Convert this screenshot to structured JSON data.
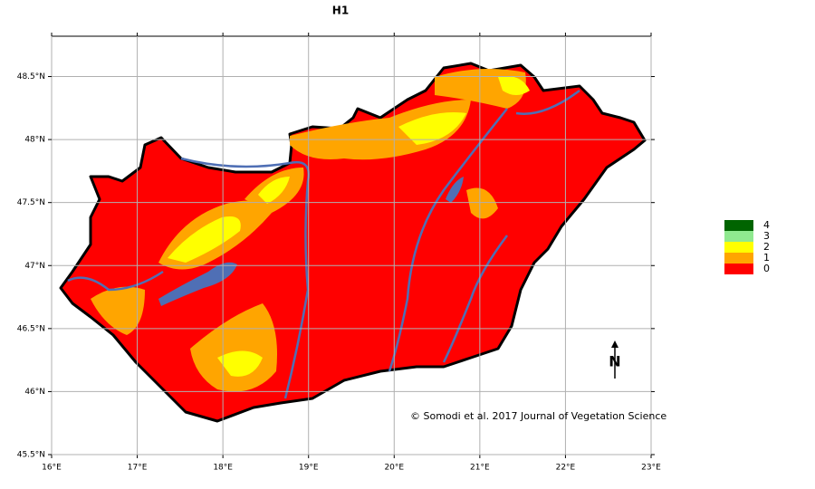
{
  "title": "H1",
  "map": {
    "xlim": [
      16,
      23
    ],
    "ylim": [
      45.5,
      48.82
    ],
    "xticks": [
      {
        "value": 16,
        "label": "16°E"
      },
      {
        "value": 17,
        "label": "17°E"
      },
      {
        "value": 18,
        "label": "18°E"
      },
      {
        "value": 19,
        "label": "19°E"
      },
      {
        "value": 20,
        "label": "20°E"
      },
      {
        "value": 21,
        "label": "21°E"
      },
      {
        "value": 22,
        "label": "22°E"
      },
      {
        "value": 23,
        "label": "23°E"
      }
    ],
    "yticks": [
      {
        "value": 45.5,
        "label": "45.5°N"
      },
      {
        "value": 46,
        "label": "46°N"
      },
      {
        "value": 46.5,
        "label": "46.5°N"
      },
      {
        "value": 47,
        "label": "47°N"
      },
      {
        "value": 47.5,
        "label": "47.5°N"
      },
      {
        "value": 48,
        "label": "48°N"
      },
      {
        "value": 48.5,
        "label": "48.5°N"
      }
    ],
    "grid": true,
    "credit": "© Somodi et al. 2017 Journal of Vegetation Science",
    "north": "N"
  },
  "legend": {
    "classes": [
      {
        "value": 4,
        "color": "#006400"
      },
      {
        "value": 3,
        "color": "#8fe98f"
      },
      {
        "value": 2,
        "color": "#ffff00"
      },
      {
        "value": 1,
        "color": "#ffa500"
      },
      {
        "value": 0,
        "color": "#ff0000"
      }
    ]
  }
}
